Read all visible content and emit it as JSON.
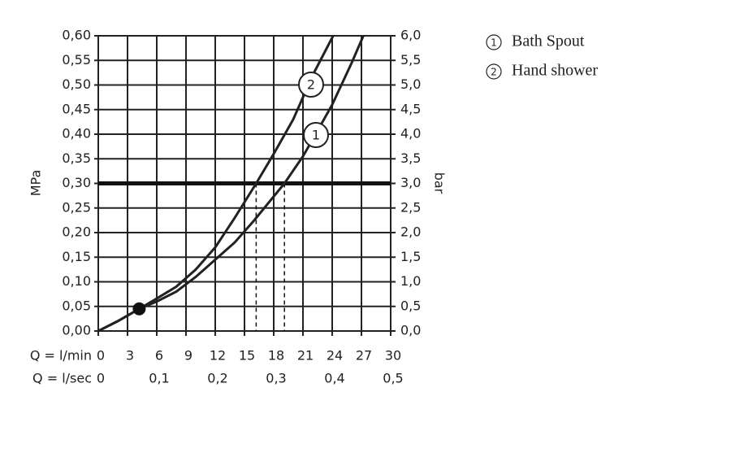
{
  "chart_data": {
    "type": "line",
    "ylabel": "MPa",
    "y2label": "bar",
    "xlabel": "Q = l/min",
    "x2label": "Q = l/sec",
    "xlim": [
      0,
      30
    ],
    "xticks": [
      0,
      3,
      6,
      9,
      12,
      15,
      18,
      21,
      24,
      27,
      30
    ],
    "x2lim": [
      0,
      0.5
    ],
    "x2ticks": [
      0,
      {
        "value": 0.1,
        "label": "0,1"
      },
      {
        "value": 0.2,
        "label": "0,2"
      },
      {
        "value": 0.3,
        "label": "0,3"
      },
      {
        "value": 0.4,
        "label": "0,4"
      },
      {
        "value": 0.5,
        "label": "0,5"
      }
    ],
    "ylim": [
      0,
      0.6
    ],
    "yticks": [
      {
        "value": 0,
        "label": "0,00"
      },
      {
        "value": 0.05,
        "label": "0,05"
      },
      {
        "value": 0.1,
        "label": "0,10"
      },
      {
        "value": 0.15,
        "label": "0,15"
      },
      {
        "value": 0.2,
        "label": "0,20"
      },
      {
        "value": 0.25,
        "label": "0,25"
      },
      {
        "value": 0.3,
        "label": "0,30"
      },
      {
        "value": 0.35,
        "label": "0,35"
      },
      {
        "value": 0.4,
        "label": "0,40"
      },
      {
        "value": 0.45,
        "label": "0,45"
      },
      {
        "value": 0.5,
        "label": "0,50"
      },
      {
        "value": 0.55,
        "label": "0,55"
      },
      {
        "value": 0.6,
        "label": "0,60"
      }
    ],
    "y2lim": [
      0,
      6
    ],
    "y2ticks": [
      {
        "value": 0,
        "label": "0,0"
      },
      {
        "value": 0.5,
        "label": "0,5"
      },
      {
        "value": 1,
        "label": "1,0"
      },
      {
        "value": 1.5,
        "label": "1,5"
      },
      {
        "value": 2,
        "label": "2,0"
      },
      {
        "value": 2.5,
        "label": "2,5"
      },
      {
        "value": 3,
        "label": "3,0"
      },
      {
        "value": 3.5,
        "label": "3,5"
      },
      {
        "value": 4,
        "label": "4,0"
      },
      {
        "value": 4.5,
        "label": "4,5"
      },
      {
        "value": 5,
        "label": "5,0"
      },
      {
        "value": 5.5,
        "label": "5,5"
      },
      {
        "value": 6,
        "label": "6,0"
      }
    ],
    "grid": true,
    "reference_y": 0.3,
    "reference_x": [
      16.2,
      19.1
    ],
    "point": {
      "x": 4.2,
      "y": 0.045
    },
    "series": [
      {
        "name": "Bath Spout",
        "marker_label": "1",
        "color": "#222222",
        "x": [
          0,
          2,
          4.2,
          6,
          8,
          10,
          12,
          14,
          16,
          19.1,
          21,
          22.3,
          24,
          26,
          27.2
        ],
        "values": [
          0,
          0.02,
          0.045,
          0.06,
          0.08,
          0.11,
          0.145,
          0.18,
          0.225,
          0.3,
          0.355,
          0.4,
          0.46,
          0.545,
          0.6
        ]
      },
      {
        "name": "Hand shower",
        "marker_label": "2",
        "color": "#222222",
        "x": [
          0,
          2,
          4.2,
          6,
          8,
          10,
          12,
          14,
          16.2,
          18,
          20,
          22,
          24.1
        ],
        "values": [
          0,
          0.02,
          0.045,
          0.066,
          0.09,
          0.125,
          0.17,
          0.23,
          0.3,
          0.36,
          0.43,
          0.52,
          0.6
        ]
      }
    ]
  }
}
